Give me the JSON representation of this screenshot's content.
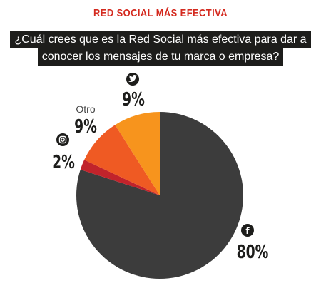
{
  "header": {
    "title": "RED SOCIAL MÁS EFECTIVA",
    "question_line1": "¿Cuál crees que es la Red Social más efectiva para dar a",
    "question_line2": "conocer los mensajes de tu marca o empresa?"
  },
  "chart_data": {
    "type": "pie",
    "title": "RED SOCIAL MÁS EFECTIVA",
    "start_angle_deg": 0,
    "direction": "clockwise",
    "slices": [
      {
        "label": "80%",
        "value": 80,
        "color": "#3c3c3c",
        "icon": "facebook-icon"
      },
      {
        "label": "2%",
        "value": 2,
        "color": "#c1232b",
        "icon": "instagram-icon"
      },
      {
        "label": "9%",
        "value": 9,
        "color": "#ef5a23",
        "name": "Otro"
      },
      {
        "label": "9%",
        "value": 9,
        "color": "#f7941d",
        "icon": "twitter-icon"
      }
    ]
  }
}
